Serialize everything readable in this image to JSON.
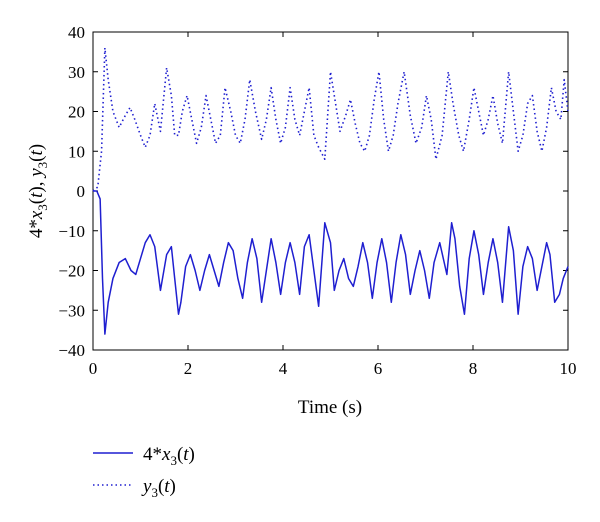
{
  "chart_data": {
    "type": "line",
    "title": "",
    "xlabel": "Time (s)",
    "ylabel": "4*x3(t), y3(t)",
    "ylabel_parts": {
      "p1": "4*",
      "p2": "x",
      "p3": "3",
      "p4": "(",
      "p5": "t",
      "p6": "), ",
      "p7": "y",
      "p8": "3",
      "p9": "(",
      "p10": "t",
      "p11": ")"
    },
    "xlim": [
      0,
      10
    ],
    "ylim": [
      -40,
      40
    ],
    "x_ticks": [
      "0",
      "2",
      "4",
      "6",
      "8",
      "10"
    ],
    "y_ticks": [
      "40",
      "30",
      "20",
      "10",
      "0",
      "-10",
      "-20",
      "-30",
      "-40"
    ],
    "grid": false,
    "legend_position": "below-left",
    "series": [
      {
        "name": "4*x3(t)",
        "legend_parts": {
          "coef": "4*",
          "var": "x",
          "sub": "3",
          "open": "(",
          "arg": "t",
          "close": ")"
        },
        "style": "solid",
        "color": "#1f1fd0",
        "x": [
          0,
          0.08,
          0.15,
          0.2,
          0.25,
          0.32,
          0.42,
          0.55,
          0.68,
          0.8,
          0.9,
          1.0,
          1.1,
          1.2,
          1.3,
          1.42,
          1.55,
          1.65,
          1.72,
          1.8,
          1.85,
          1.95,
          2.05,
          2.15,
          2.25,
          2.35,
          2.45,
          2.55,
          2.65,
          2.75,
          2.85,
          2.95,
          3.05,
          3.15,
          3.25,
          3.35,
          3.45,
          3.55,
          3.65,
          3.75,
          3.85,
          3.95,
          4.05,
          4.15,
          4.25,
          4.35,
          4.45,
          4.55,
          4.65,
          4.75,
          4.88,
          5.0,
          5.08,
          5.18,
          5.28,
          5.38,
          5.48,
          5.58,
          5.68,
          5.78,
          5.88,
          5.98,
          6.08,
          6.18,
          6.28,
          6.38,
          6.48,
          6.58,
          6.68,
          6.78,
          6.88,
          6.98,
          7.08,
          7.18,
          7.3,
          7.45,
          7.55,
          7.62,
          7.72,
          7.82,
          7.92,
          8.02,
          8.12,
          8.22,
          8.32,
          8.42,
          8.52,
          8.62,
          8.75,
          8.85,
          8.95,
          9.05,
          9.15,
          9.25,
          9.35,
          9.45,
          9.55,
          9.62,
          9.72,
          9.82,
          9.9,
          10.0
        ],
        "y": [
          0,
          0,
          -2,
          -22,
          -36,
          -28,
          -22,
          -18,
          -17,
          -20,
          -21,
          -17,
          -13,
          -11,
          -14,
          -25,
          -16,
          -14,
          -22,
          -31,
          -28,
          -19,
          -16,
          -20,
          -25,
          -20,
          -16,
          -20,
          -24,
          -18,
          -13,
          -15,
          -22,
          -27,
          -18,
          -12,
          -17,
          -28,
          -20,
          -12,
          -18,
          -26,
          -18,
          -13,
          -18,
          -26,
          -14,
          -11,
          -20,
          -29,
          -8,
          -13,
          -25,
          -20,
          -17,
          -22,
          -24,
          -19,
          -13,
          -18,
          -27,
          -18,
          -12,
          -18,
          -28,
          -18,
          -11,
          -16,
          -26,
          -20,
          -15,
          -20,
          -27,
          -18,
          -13,
          -21,
          -8,
          -12,
          -24,
          -31,
          -17,
          -10,
          -16,
          -26,
          -18,
          -12,
          -18,
          -28,
          -9,
          -15,
          -31,
          -19,
          -14,
          -17,
          -25,
          -19,
          -13,
          -16,
          -28,
          -26,
          -22,
          -19
        ]
      },
      {
        "name": "y3(t)",
        "legend_parts": {
          "var": "y",
          "sub": "3",
          "open": "(",
          "arg": "t",
          "close": ")"
        },
        "style": "dotted",
        "color": "#1f1fd0",
        "x": [
          0,
          0.1,
          0.18,
          0.25,
          0.32,
          0.42,
          0.55,
          0.68,
          0.78,
          0.88,
          1.0,
          1.1,
          1.2,
          1.3,
          1.42,
          1.55,
          1.65,
          1.72,
          1.8,
          1.88,
          1.98,
          2.08,
          2.18,
          2.28,
          2.38,
          2.48,
          2.58,
          2.68,
          2.78,
          2.9,
          3.0,
          3.1,
          3.2,
          3.3,
          3.42,
          3.55,
          3.65,
          3.75,
          3.85,
          3.95,
          4.05,
          4.15,
          4.25,
          4.35,
          4.45,
          4.55,
          4.65,
          4.75,
          4.88,
          5.0,
          5.08,
          5.2,
          5.32,
          5.42,
          5.52,
          5.62,
          5.72,
          5.82,
          5.92,
          6.02,
          6.12,
          6.22,
          6.32,
          6.42,
          6.55,
          6.68,
          6.8,
          6.92,
          7.02,
          7.12,
          7.22,
          7.35,
          7.48,
          7.58,
          7.7,
          7.8,
          7.92,
          8.02,
          8.12,
          8.22,
          8.32,
          8.42,
          8.52,
          8.62,
          8.75,
          8.85,
          8.95,
          9.05,
          9.15,
          9.25,
          9.35,
          9.45,
          9.55,
          9.65,
          9.75,
          9.85,
          9.92,
          10.0
        ],
        "y": [
          0,
          1,
          10,
          36,
          28,
          20,
          16,
          19,
          21,
          18,
          14,
          11,
          14,
          22,
          15,
          31,
          24,
          14,
          14,
          20,
          24,
          18,
          12,
          16,
          24,
          18,
          12,
          14,
          26,
          20,
          14,
          12,
          18,
          28,
          20,
          13,
          18,
          26,
          18,
          12,
          16,
          26,
          18,
          14,
          20,
          26,
          14,
          11,
          8,
          30,
          24,
          15,
          19,
          23,
          17,
          12,
          10,
          14,
          23,
          30,
          18,
          10,
          14,
          22,
          30,
          19,
          12,
          16,
          24,
          18,
          8,
          14,
          30,
          22,
          14,
          10,
          18,
          26,
          20,
          14,
          18,
          24,
          17,
          12,
          30,
          20,
          10,
          14,
          22,
          24,
          15,
          10,
          16,
          26,
          20,
          18,
          28,
          20
        ]
      }
    ]
  }
}
